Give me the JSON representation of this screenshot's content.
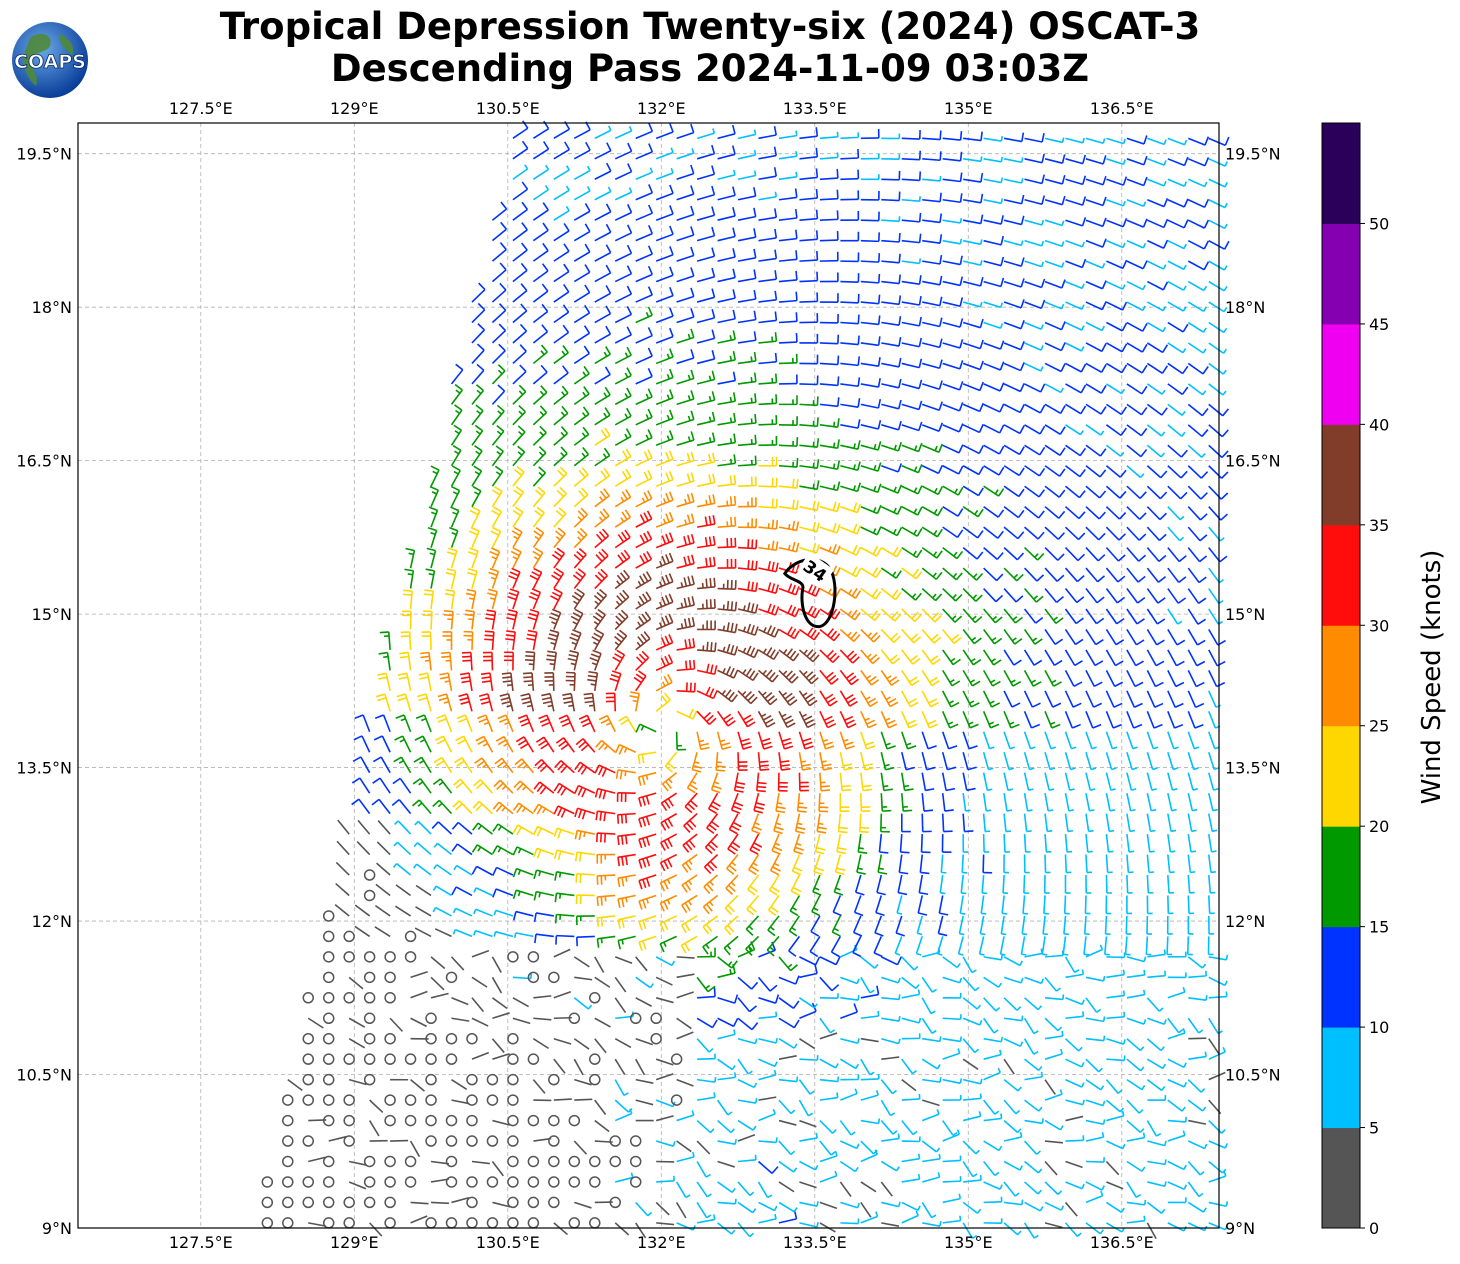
{
  "title_line1": "Tropical Depression Twenty-six (2024) OSCAT-3",
  "title_line2": "Descending Pass 2024-11-09 03:03Z",
  "logo_text": "COAPS",
  "map": {
    "lon_range": [
      126.3,
      137.45
    ],
    "lat_range": [
      9.0,
      19.8
    ],
    "lon_ticks": [
      "127.5°E",
      "129°E",
      "130.5°E",
      "132°E",
      "133.5°E",
      "135°E",
      "136.5°E"
    ],
    "lon_values": [
      127.5,
      129,
      130.5,
      132,
      133.5,
      135,
      136.5
    ],
    "lat_ticks": [
      "9°N",
      "10.5°N",
      "12°N",
      "13.5°N",
      "15°N",
      "16.5°N",
      "18°N",
      "19.5°N"
    ],
    "lat_values": [
      9,
      10.5,
      12,
      13.5,
      15,
      16.5,
      18,
      19.5
    ],
    "grid": true,
    "storm_center": {
      "lon": 132.0,
      "lat": 13.9
    },
    "contour_label": "34",
    "contour_center": {
      "lon": 133.5,
      "lat": 15.25
    }
  },
  "colorbar": {
    "label": "Wind Speed (knots)",
    "ticks": [
      "0",
      "5",
      "10",
      "15",
      "20",
      "25",
      "30",
      "35",
      "40",
      "45",
      "50"
    ],
    "colors": [
      "#555555",
      "#00bfff",
      "#0033ff",
      "#009900",
      "#ffd700",
      "#ff8c00",
      "#ff0d0d",
      "#823d2a",
      "#f000f0",
      "#8500b0",
      "#2a005a"
    ]
  }
}
